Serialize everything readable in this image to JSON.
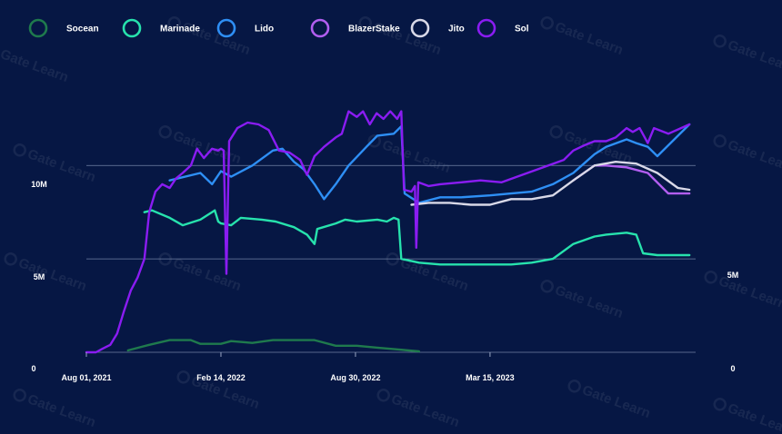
{
  "chart_data": {
    "type": "line",
    "title": "",
    "xlabel": "",
    "ylabel": "",
    "watermark": "Gate Learn",
    "x_ticks": [
      "Aug 01, 2021",
      "Feb 14, 2022",
      "Aug 30, 2022",
      "Mar 15, 2023"
    ],
    "y_ticks_left": [
      "0",
      "5M",
      "10M"
    ],
    "y_ticks_right": [
      "0",
      "5M"
    ],
    "ylim": [
      0,
      14000000
    ],
    "xlim": [
      "2021-08-01",
      "2024-01-10"
    ],
    "grid": "horizontal",
    "legend_position": "top-left",
    "series": [
      {
        "name": "Socean",
        "color": "#1f7a4d",
        "points": [
          [
            "2021-10-01",
            100000
          ],
          [
            "2021-11-01",
            400000
          ],
          [
            "2021-12-01",
            650000
          ],
          [
            "2022-01-01",
            650000
          ],
          [
            "2022-01-15",
            450000
          ],
          [
            "2022-02-14",
            450000
          ],
          [
            "2022-03-01",
            600000
          ],
          [
            "2022-04-01",
            500000
          ],
          [
            "2022-05-01",
            650000
          ],
          [
            "2022-06-01",
            650000
          ],
          [
            "2022-07-01",
            650000
          ],
          [
            "2022-08-01",
            350000
          ],
          [
            "2022-09-01",
            350000
          ],
          [
            "2022-10-01",
            250000
          ],
          [
            "2022-11-01",
            150000
          ],
          [
            "2022-12-01",
            50000
          ]
        ]
      },
      {
        "name": "Marinade",
        "color": "#27e2ad",
        "points": [
          [
            "2021-10-25",
            7500000
          ],
          [
            "2021-11-05",
            7600000
          ],
          [
            "2021-12-01",
            7200000
          ],
          [
            "2021-12-20",
            6800000
          ],
          [
            "2022-01-15",
            7100000
          ],
          [
            "2022-02-05",
            7600000
          ],
          [
            "2022-02-10",
            7000000
          ],
          [
            "2022-02-14",
            6900000
          ],
          [
            "2022-03-01",
            6800000
          ],
          [
            "2022-03-15",
            7200000
          ],
          [
            "2022-04-15",
            7100000
          ],
          [
            "2022-05-05",
            7000000
          ],
          [
            "2022-06-01",
            6700000
          ],
          [
            "2022-06-20",
            6300000
          ],
          [
            "2022-07-01",
            5800000
          ],
          [
            "2022-07-05",
            6600000
          ],
          [
            "2022-08-01",
            6900000
          ],
          [
            "2022-08-15",
            7100000
          ],
          [
            "2022-09-01",
            7000000
          ],
          [
            "2022-10-01",
            7100000
          ],
          [
            "2022-10-15",
            7000000
          ],
          [
            "2022-10-25",
            7200000
          ],
          [
            "2022-11-01",
            7100000
          ],
          [
            "2022-11-05",
            5000000
          ],
          [
            "2022-12-01",
            4800000
          ],
          [
            "2023-01-01",
            4700000
          ],
          [
            "2023-03-15",
            4700000
          ],
          [
            "2023-04-15",
            4700000
          ],
          [
            "2023-05-15",
            4800000
          ],
          [
            "2023-06-15",
            5000000
          ],
          [
            "2023-07-15",
            5800000
          ],
          [
            "2023-08-15",
            6200000
          ],
          [
            "2023-09-01",
            6300000
          ],
          [
            "2023-10-01",
            6400000
          ],
          [
            "2023-10-15",
            6300000
          ],
          [
            "2023-10-25",
            5300000
          ],
          [
            "2023-11-15",
            5200000
          ],
          [
            "2024-01-01",
            5200000
          ]
        ]
      },
      {
        "name": "Lido",
        "color": "#2e8ff5",
        "points": [
          [
            "2021-12-01",
            9200000
          ],
          [
            "2022-01-15",
            9600000
          ],
          [
            "2022-02-01",
            9000000
          ],
          [
            "2022-02-14",
            9700000
          ],
          [
            "2022-03-01",
            9400000
          ],
          [
            "2022-04-01",
            10000000
          ],
          [
            "2022-05-01",
            10800000
          ],
          [
            "2022-05-15",
            10900000
          ],
          [
            "2022-06-01",
            10200000
          ],
          [
            "2022-06-15",
            9800000
          ],
          [
            "2022-07-01",
            9000000
          ],
          [
            "2022-07-15",
            8200000
          ],
          [
            "2022-08-01",
            9000000
          ],
          [
            "2022-08-20",
            10000000
          ],
          [
            "2022-09-15",
            11000000
          ],
          [
            "2022-10-01",
            11600000
          ],
          [
            "2022-10-25",
            11700000
          ],
          [
            "2022-11-05",
            12100000
          ],
          [
            "2022-11-10",
            8500000
          ],
          [
            "2022-12-01",
            8000000
          ],
          [
            "2023-01-01",
            8300000
          ],
          [
            "2023-02-01",
            8300000
          ],
          [
            "2023-03-15",
            8400000
          ],
          [
            "2023-04-15",
            8500000
          ],
          [
            "2023-05-15",
            8600000
          ],
          [
            "2023-06-15",
            9000000
          ],
          [
            "2023-07-15",
            9600000
          ],
          [
            "2023-08-15",
            10600000
          ],
          [
            "2023-09-01",
            11000000
          ],
          [
            "2023-10-01",
            11400000
          ],
          [
            "2023-10-15",
            11200000
          ],
          [
            "2023-11-01",
            11000000
          ],
          [
            "2023-11-15",
            10500000
          ],
          [
            "2024-01-01",
            12200000
          ]
        ]
      },
      {
        "name": "BlazerStake",
        "color": "#b25ef0",
        "points": [
          [
            "2023-07-15",
            9200000
          ],
          [
            "2023-08-15",
            10000000
          ],
          [
            "2023-09-01",
            10000000
          ],
          [
            "2023-10-01",
            9900000
          ],
          [
            "2023-11-01",
            9600000
          ],
          [
            "2023-12-01",
            8500000
          ],
          [
            "2024-01-01",
            8500000
          ]
        ]
      },
      {
        "name": "Jito",
        "color": "#d9d9e8",
        "points": [
          [
            "2022-11-20",
            7900000
          ],
          [
            "2022-12-15",
            8000000
          ],
          [
            "2023-01-15",
            8000000
          ],
          [
            "2023-02-15",
            7900000
          ],
          [
            "2023-03-15",
            7900000
          ],
          [
            "2023-04-15",
            8200000
          ],
          [
            "2023-05-15",
            8200000
          ],
          [
            "2023-06-15",
            8400000
          ],
          [
            "2023-07-15",
            9200000
          ],
          [
            "2023-08-15",
            10000000
          ],
          [
            "2023-09-15",
            10200000
          ],
          [
            "2023-10-15",
            10100000
          ],
          [
            "2023-11-15",
            9600000
          ],
          [
            "2023-12-15",
            8800000
          ],
          [
            "2024-01-01",
            8700000
          ]
        ]
      },
      {
        "name": "Sol",
        "color": "#8a1cf2",
        "points": [
          [
            "2021-08-01",
            0
          ],
          [
            "2021-08-15",
            0
          ],
          [
            "2021-08-25",
            200000
          ],
          [
            "2021-09-05",
            400000
          ],
          [
            "2021-09-15",
            1000000
          ],
          [
            "2021-09-25",
            2200000
          ],
          [
            "2021-10-05",
            3300000
          ],
          [
            "2021-10-15",
            4000000
          ],
          [
            "2021-10-25",
            5000000
          ],
          [
            "2021-11-01",
            7500000
          ],
          [
            "2021-11-10",
            8600000
          ],
          [
            "2021-11-20",
            9000000
          ],
          [
            "2021-12-01",
            8800000
          ],
          [
            "2021-12-10",
            9300000
          ],
          [
            "2021-12-20",
            9600000
          ],
          [
            "2022-01-01",
            10000000
          ],
          [
            "2022-01-10",
            10900000
          ],
          [
            "2022-01-20",
            10400000
          ],
          [
            "2022-02-01",
            10900000
          ],
          [
            "2022-02-10",
            10800000
          ],
          [
            "2022-02-14",
            10900000
          ],
          [
            "2022-02-18",
            10800000
          ],
          [
            "2022-02-22",
            4200000
          ],
          [
            "2022-02-26",
            11300000
          ],
          [
            "2022-03-10",
            12000000
          ],
          [
            "2022-03-25",
            12300000
          ],
          [
            "2022-04-10",
            12200000
          ],
          [
            "2022-04-25",
            11900000
          ],
          [
            "2022-05-10",
            10800000
          ],
          [
            "2022-05-25",
            10700000
          ],
          [
            "2022-06-10",
            10300000
          ],
          [
            "2022-06-20",
            9500000
          ],
          [
            "2022-07-01",
            10500000
          ],
          [
            "2022-07-15",
            11000000
          ],
          [
            "2022-08-01",
            11500000
          ],
          [
            "2022-08-10",
            11700000
          ],
          [
            "2022-08-20",
            12900000
          ],
          [
            "2022-09-01",
            12600000
          ],
          [
            "2022-09-10",
            12900000
          ],
          [
            "2022-09-20",
            12200000
          ],
          [
            "2022-09-30",
            12800000
          ],
          [
            "2022-10-10",
            12500000
          ],
          [
            "2022-10-20",
            12900000
          ],
          [
            "2022-10-30",
            12500000
          ],
          [
            "2022-11-05",
            12900000
          ],
          [
            "2022-11-09",
            8700000
          ],
          [
            "2022-11-20",
            8600000
          ],
          [
            "2022-11-25",
            8900000
          ],
          [
            "2022-11-27",
            5600000
          ],
          [
            "2022-11-30",
            9100000
          ],
          [
            "2022-12-15",
            8900000
          ],
          [
            "2023-01-01",
            9000000
          ],
          [
            "2023-02-01",
            9100000
          ],
          [
            "2023-03-01",
            9200000
          ],
          [
            "2023-04-01",
            9100000
          ],
          [
            "2023-05-01",
            9500000
          ],
          [
            "2023-06-01",
            9900000
          ],
          [
            "2023-07-01",
            10300000
          ],
          [
            "2023-07-15",
            10800000
          ],
          [
            "2023-08-01",
            11100000
          ],
          [
            "2023-08-15",
            11300000
          ],
          [
            "2023-09-01",
            11300000
          ],
          [
            "2023-09-15",
            11500000
          ],
          [
            "2023-10-01",
            12000000
          ],
          [
            "2023-10-10",
            11800000
          ],
          [
            "2023-10-20",
            12000000
          ],
          [
            "2023-11-01",
            11200000
          ],
          [
            "2023-11-10",
            12000000
          ],
          [
            "2023-12-01",
            11700000
          ],
          [
            "2024-01-01",
            12200000
          ]
        ]
      }
    ]
  }
}
